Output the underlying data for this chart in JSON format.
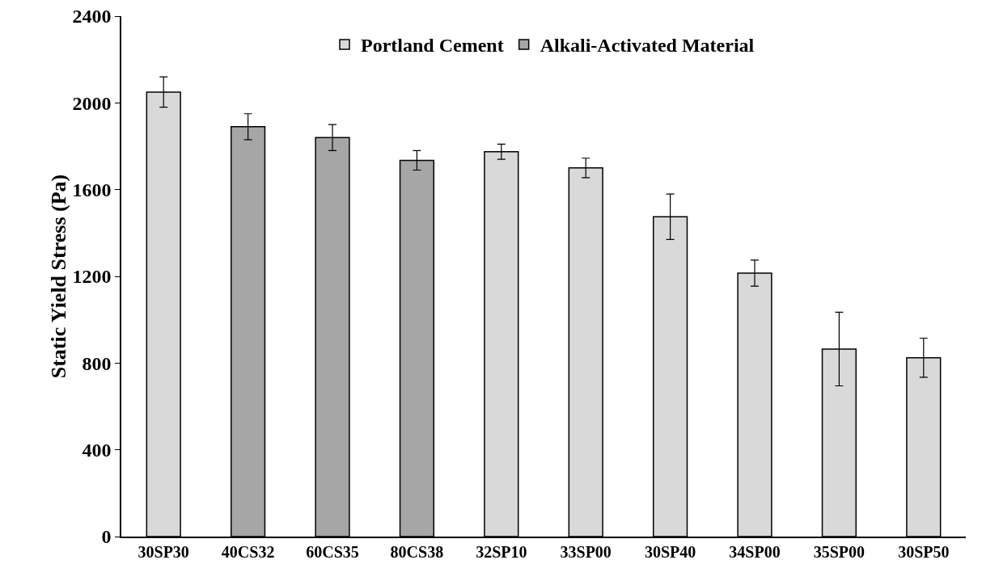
{
  "chart_data": {
    "type": "bar",
    "ylabel": "Static Yield Stress (Pa)",
    "categories": [
      "30SP30",
      "40CS32",
      "60CS35",
      "80CS38",
      "32SP10",
      "33SP00",
      "30SP40",
      "34SP00",
      "35SP00",
      "30SP50"
    ],
    "series": [
      {
        "name": "Portland Cement",
        "color": "#d9d9d9",
        "values": [
          2050,
          null,
          null,
          null,
          1775,
          1700,
          1475,
          1215,
          865,
          825
        ],
        "errors": [
          70,
          null,
          null,
          null,
          35,
          45,
          105,
          60,
          170,
          90
        ]
      },
      {
        "name": "Alkali-Activated Material",
        "color": "#a6a6a6",
        "values": [
          null,
          1890,
          1840,
          1735,
          null,
          null,
          null,
          null,
          null,
          null
        ],
        "errors": [
          null,
          60,
          60,
          45,
          null,
          null,
          null,
          null,
          null,
          null
        ]
      }
    ],
    "ylim": [
      0,
      2400
    ],
    "yticks": [
      0,
      400,
      800,
      1200,
      1600,
      2000,
      2400
    ],
    "grid": false,
    "legend": "top"
  }
}
